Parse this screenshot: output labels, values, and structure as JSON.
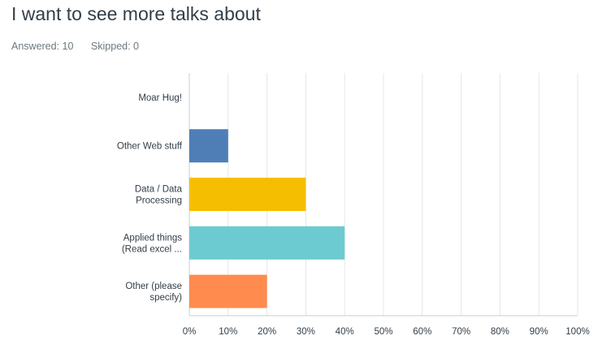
{
  "header": {
    "title": "I want to see more talks about",
    "answered": "Answered: 10",
    "skipped": "Skipped: 0"
  },
  "chart_data": {
    "type": "bar",
    "orientation": "horizontal",
    "categories": [
      [
        "Moar Hug!"
      ],
      [
        "Other Web stuff"
      ],
      [
        "Data / Data",
        "Processing"
      ],
      [
        "Applied things",
        "(Read excel ..."
      ],
      [
        "Other (please",
        "specify)"
      ]
    ],
    "values": [
      0,
      10,
      30,
      40,
      20
    ],
    "colors": [
      "#4f7eb7",
      "#4f7eb7",
      "#f6be00",
      "#6ccbd0",
      "#ff8b4f"
    ],
    "xlim": [
      0,
      100
    ],
    "x_ticks": [
      "0%",
      "10%",
      "20%",
      "30%",
      "40%",
      "50%",
      "60%",
      "70%",
      "80%",
      "90%",
      "100%"
    ],
    "grid": true
  }
}
